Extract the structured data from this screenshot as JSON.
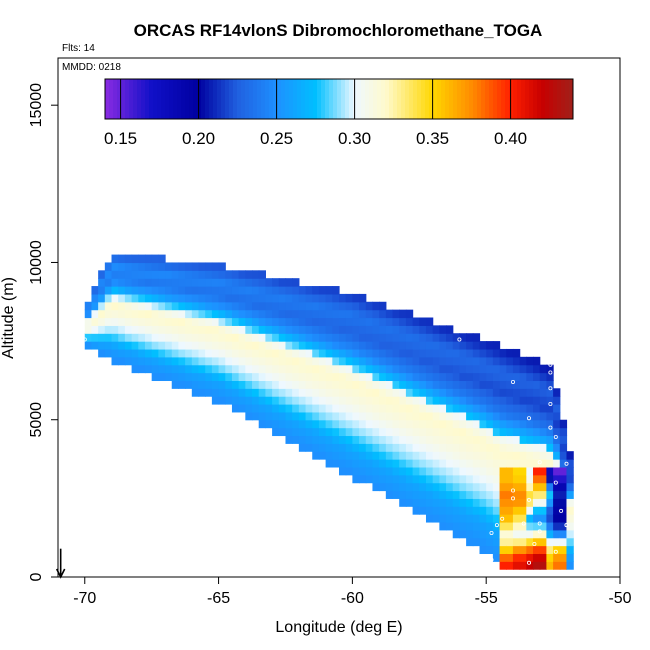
{
  "chart_data": {
    "type": "heatmap",
    "title": "ORCAS RF14vlonS Dibromochloromethane_TOGA",
    "annotations": [
      "Flts: 14",
      "MMDD: 0218"
    ],
    "xlabel": "Longitude (deg E)",
    "ylabel": "Altitude (m)",
    "xlim": [
      -71,
      -50
    ],
    "ylim": [
      0,
      16500
    ],
    "x_ticks": [
      -70,
      -65,
      -60,
      -55,
      -50
    ],
    "y_ticks": [
      0,
      5000,
      10000,
      15000
    ],
    "colorbar": {
      "range": [
        0.14,
        0.44
      ],
      "ticks": [
        0.15,
        0.2,
        0.25,
        0.3,
        0.35,
        0.4
      ],
      "tick_labels": [
        "0.15",
        "0.20",
        "0.25",
        "0.30",
        "0.35",
        "0.40"
      ],
      "stops": [
        {
          "v": 0.14,
          "c": "#8a2be2"
        },
        {
          "v": 0.17,
          "c": "#1010c8"
        },
        {
          "v": 0.2,
          "c": "#0000a0"
        },
        {
          "v": 0.225,
          "c": "#2060e0"
        },
        {
          "v": 0.25,
          "c": "#1e90ff"
        },
        {
          "v": 0.275,
          "c": "#00bfff"
        },
        {
          "v": 0.3,
          "c": "#eef8ff"
        },
        {
          "v": 0.32,
          "c": "#fffacd"
        },
        {
          "v": 0.35,
          "c": "#ffd700"
        },
        {
          "v": 0.375,
          "c": "#ff8c00"
        },
        {
          "v": 0.4,
          "c": "#ff2000"
        },
        {
          "v": 0.42,
          "c": "#c80000"
        },
        {
          "v": 0.44,
          "c": "#a0201a"
        }
      ]
    },
    "curtain": {
      "x_start": -70,
      "x_end": -51.8,
      "dx": 0.25,
      "dz": 250,
      "floor": {
        "x": [
          -70,
          -69,
          -65,
          -60,
          -55,
          -54.5,
          -51.8
        ],
        "z": [
          7400,
          7000,
          5700,
          3300,
          900,
          500,
          300
        ]
      },
      "ceiling": {
        "x": [
          -70,
          -69,
          -65,
          -60,
          -55,
          -53.2,
          -52.5,
          -51.8
        ],
        "z": [
          8500,
          10200,
          9800,
          8900,
          7400,
          6800,
          6500,
          3600
        ]
      },
      "band_profile": {
        "u": [
          0,
          0.12,
          0.25,
          0.4,
          0.52,
          0.6,
          0.7,
          0.8,
          0.9,
          1
        ],
        "v": [
          0.25,
          0.26,
          0.29,
          0.31,
          0.32,
          0.3,
          0.26,
          0.24,
          0.25,
          0.23
        ]
      },
      "columns": [
        {
          "x": -54.2,
          "z": [
            [
              500,
              0.4
            ],
            [
              800,
              0.36
            ],
            [
              1300,
              0.31
            ],
            [
              1900,
              0.36
            ],
            [
              2600,
              0.38
            ],
            [
              3100,
              0.36
            ]
          ]
        },
        {
          "x": -53.8,
          "z": [
            [
              500,
              0.41
            ],
            [
              900,
              0.37
            ],
            [
              1300,
              0.3
            ],
            [
              1900,
              0.34
            ],
            [
              2500,
              0.38
            ],
            [
              3200,
              0.35
            ]
          ]
        },
        {
          "x": -53.4,
          "z": [
            [
              500,
              0.42
            ],
            [
              900,
              0.38
            ],
            [
              1400,
              0.3
            ],
            [
              1900,
              0.27
            ],
            [
              2500,
              0.35
            ],
            [
              3200,
              0.3
            ]
          ]
        },
        {
          "x": -53.0,
          "z": [
            [
              500,
              0.43
            ],
            [
              900,
              0.39
            ],
            [
              1500,
              0.3
            ],
            [
              1900,
              0.25
            ],
            [
              2600,
              0.33
            ],
            [
              3300,
              0.4
            ]
          ]
        },
        {
          "x": -52.6,
          "z": [
            [
              500,
              0.36
            ],
            [
              900,
              0.33
            ],
            [
              1500,
              0.25
            ],
            [
              2000,
              0.21
            ],
            [
              2600,
              0.28
            ],
            [
              3300,
              0.18
            ]
          ]
        },
        {
          "x": -52.2,
          "z": [
            [
              500,
              0.38
            ],
            [
              900,
              0.35
            ],
            [
              1500,
              0.22
            ],
            [
              2000,
              0.19
            ],
            [
              2600,
              0.21
            ],
            [
              3300,
              0.15
            ]
          ]
        }
      ]
    },
    "flight_points": [
      [
        -70.0,
        7550
      ],
      [
        -56.0,
        7550
      ],
      [
        -54.0,
        6200
      ],
      [
        -52.6,
        6750
      ],
      [
        -52.6,
        6500
      ],
      [
        -52.6,
        6000
      ],
      [
        -52.6,
        5500
      ],
      [
        -52.6,
        4750
      ],
      [
        -53.4,
        5050
      ],
      [
        -52.4,
        4450
      ],
      [
        -53.0,
        3650
      ],
      [
        -52.0,
        3600
      ],
      [
        -52.4,
        3000
      ],
      [
        -54.0,
        2750
      ],
      [
        -54.0,
        2500
      ],
      [
        -53.4,
        2450
      ],
      [
        -52.2,
        2100
      ],
      [
        -54.4,
        1850
      ],
      [
        -53.6,
        1700
      ],
      [
        -53.0,
        1700
      ],
      [
        -52.0,
        1650
      ],
      [
        -53.0,
        1450
      ],
      [
        -52.0,
        1650
      ],
      [
        -54.6,
        1650
      ],
      [
        -54.8,
        1400
      ],
      [
        -53.2,
        1050
      ],
      [
        -52.4,
        800
      ],
      [
        -54.8,
        550
      ],
      [
        -53.4,
        450
      ]
    ],
    "marker_arrow": {
      "x": -70.9,
      "z_from": 900,
      "z_to": 0
    }
  }
}
